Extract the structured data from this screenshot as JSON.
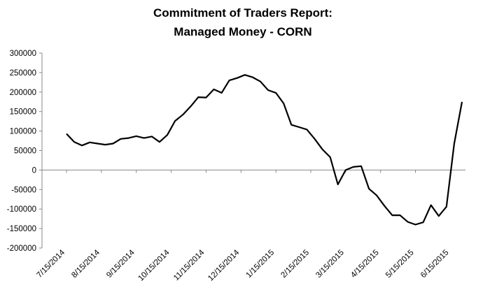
{
  "chart_data": {
    "type": "line",
    "title": "Commitment of Traders Report:",
    "subtitle": "Managed Money - CORN",
    "xlabel": "",
    "ylabel": "",
    "ylim": [
      -200000,
      300000
    ],
    "y_ticks": [
      300000,
      250000,
      200000,
      150000,
      100000,
      50000,
      0,
      -50000,
      -100000,
      -150000,
      -200000
    ],
    "x_tick_labels": [
      "7/15/2014",
      "8/15/2014",
      "9/15/2014",
      "10/15/2014",
      "11/15/2014",
      "12/15/2014",
      "1/15/2015",
      "2/15/2015",
      "3/15/2015",
      "4/15/2015",
      "5/15/2015",
      "6/15/2015"
    ],
    "grid": false,
    "legend": "none",
    "line_color": "#000000",
    "series": [
      {
        "values": [
          93000,
          72000,
          63000,
          71000,
          68000,
          65000,
          68000,
          80000,
          82000,
          87000,
          82000,
          86000,
          72000,
          90000,
          126000,
          142000,
          163000,
          187000,
          186000,
          207000,
          198000,
          230000,
          236000,
          244000,
          238000,
          227000,
          205000,
          198000,
          171000,
          116000,
          110000,
          104000,
          80000,
          53000,
          33000,
          -37000,
          0,
          8000,
          10000,
          -48000,
          -65000,
          -92000,
          -116000,
          -116000,
          -133000,
          -140000,
          -134000,
          -90000,
          -118000,
          -94000,
          68000,
          175000
        ]
      }
    ]
  }
}
